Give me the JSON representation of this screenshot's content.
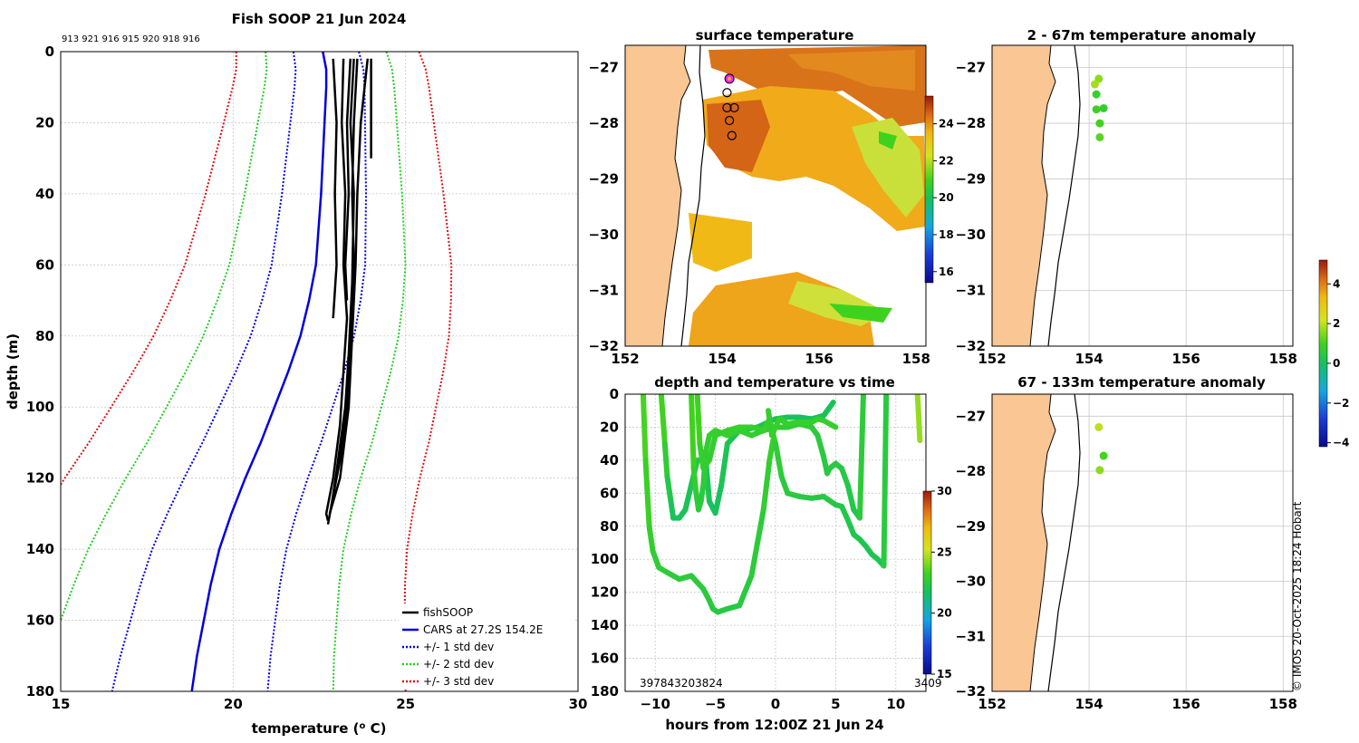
{
  "figure": {
    "title": "Fish SOOP 21 Jun 2024",
    "vessel_ids": "913 921 916 915 920 918 916",
    "copyright": "© IMOS 20-Oct-2025 18:24 Hobart"
  },
  "colors": {
    "fishsoop": "#000000",
    "cars": "#0000dd",
    "std1": "#0000dd",
    "std2": "#22cc22",
    "std3": "#dd1111",
    "land": "#f9c694",
    "grid": "#c8c8c8"
  },
  "chart_data": [
    {
      "type": "line",
      "panel": "profile",
      "title": "Fish SOOP 21 Jun 2024",
      "xlabel": "temperature (",
      "xlabel_sup": "o",
      "xlabel_unit": " C)",
      "ylabel": "depth (m)",
      "xlim": [
        15,
        30
      ],
      "ylim": [
        180,
        0
      ],
      "xticks": [
        15,
        20,
        25,
        30
      ],
      "yticks": [
        0,
        20,
        40,
        60,
        80,
        100,
        120,
        140,
        160,
        180
      ],
      "legend_position": "bottom-right",
      "legend": [
        "fishSOOP",
        "CARS at 27.2S 154.2E",
        "+/- 1 std dev",
        "+/- 2 std dev",
        "+/- 3 std dev"
      ],
      "cars": {
        "depth": [
          0,
          5,
          10,
          20,
          40,
          60,
          70,
          80,
          90,
          100,
          110,
          120,
          130,
          140,
          150,
          160,
          170,
          180
        ],
        "temp": [
          22.6,
          22.7,
          22.7,
          22.65,
          22.55,
          22.4,
          22.2,
          21.95,
          21.6,
          21.2,
          20.8,
          20.35,
          19.95,
          19.6,
          19.35,
          19.15,
          18.95,
          18.8
        ]
      },
      "std_offsets": [
        2.1,
        4.1,
        6.2
      ],
      "fishsoop_profiles": [
        {
          "depth": [
            2,
            20,
            40,
            60,
            75
          ],
          "temp": [
            22.9,
            23.0,
            22.95,
            23.0,
            22.9
          ]
        },
        {
          "depth": [
            2,
            20,
            40,
            60,
            75,
            90,
            105,
            120,
            130,
            132
          ],
          "temp": [
            23.2,
            23.15,
            23.25,
            23.2,
            23.3,
            23.2,
            23.1,
            22.9,
            22.7,
            22.75
          ]
        },
        {
          "depth": [
            2,
            20,
            40,
            60,
            70
          ],
          "temp": [
            23.4,
            23.3,
            23.35,
            23.25,
            23.3
          ]
        },
        {
          "depth": [
            2,
            20,
            40,
            60,
            80,
            100,
            115,
            125,
            133
          ],
          "temp": [
            23.6,
            23.5,
            23.45,
            23.5,
            23.4,
            23.3,
            23.1,
            22.9,
            22.75
          ]
        },
        {
          "depth": [
            2,
            20,
            40,
            60,
            80,
            100,
            120,
            130
          ],
          "temp": [
            23.9,
            23.7,
            23.6,
            23.55,
            23.45,
            23.35,
            23.1,
            22.8
          ]
        },
        {
          "depth": [
            2,
            30
          ],
          "temp": [
            24.0,
            24.0
          ]
        },
        {
          "depth": [
            2,
            20,
            40,
            65,
            85,
            100,
            118,
            128
          ],
          "temp": [
            23.5,
            23.4,
            23.5,
            23.45,
            23.35,
            23.25,
            23.0,
            22.85
          ]
        }
      ]
    },
    {
      "type": "heatmap",
      "panel": "sst_map",
      "title": "surface temperature",
      "xlim": [
        152,
        158.2
      ],
      "ylim": [
        -32,
        -26.6
      ],
      "xticks": [
        152,
        154,
        156,
        158
      ],
      "yticks": [
        -27,
        -28,
        -29,
        -30,
        -31,
        -32
      ],
      "colorbar": {
        "min": 15.4,
        "max": 25.5,
        "ticks": [
          16,
          18,
          20,
          22,
          24
        ]
      },
      "stations": [
        {
          "lon": 154.1,
          "lat": -27.45
        },
        {
          "lon": 154.1,
          "lat": -27.72
        },
        {
          "lon": 154.25,
          "lat": -27.72
        },
        {
          "lon": 154.15,
          "lat": -27.95
        },
        {
          "lon": 154.2,
          "lat": -28.22
        }
      ],
      "highlight_station": {
        "lon": 154.15,
        "lat": -27.2
      }
    },
    {
      "type": "line",
      "panel": "depth_time",
      "title": "depth and temperature vs time",
      "xlabel": "hours from 12:00Z 21 Jun 24",
      "xlim": [
        -12.5,
        12.5
      ],
      "ylim": [
        180,
        0
      ],
      "xticks": [
        -10,
        -5,
        0,
        5,
        10
      ],
      "yticks": [
        0,
        20,
        40,
        60,
        80,
        100,
        120,
        140,
        160,
        180
      ],
      "colorbar": {
        "min": 15,
        "max": 30,
        "ticks": [
          15,
          20,
          25,
          30
        ]
      },
      "start_labels": "397843203824",
      "end_label": "3409",
      "tracks": [
        {
          "hours": [
            -11,
            -10.8,
            -10.5,
            -10.2,
            -9.7,
            -9,
            -8,
            -7,
            -6,
            -5.5,
            -5.2,
            -4.8,
            -4,
            -3,
            -2,
            -1,
            -0.5,
            -0.2
          ],
          "depth": [
            0,
            40,
            80,
            95,
            105,
            108,
            112,
            110,
            118,
            125,
            130,
            132,
            130,
            128,
            110,
            70,
            40,
            28
          ],
          "temp": [
            23.5,
            23.2,
            23.0,
            22.8,
            22.7,
            22.7,
            22.6,
            22.6,
            22.5,
            22.5,
            22.4,
            22.3,
            22.4,
            22.4,
            22.5,
            22.7,
            22.9,
            23.0
          ]
        },
        {
          "hours": [
            -9.5,
            -9.2,
            -9,
            -8.7,
            -8.5,
            -8,
            -7.5,
            -7,
            -6.5,
            -5.8,
            -5.5,
            -5,
            -4.5,
            -4,
            -3,
            -1.5,
            0,
            1,
            2,
            3,
            4,
            4.8
          ],
          "depth": [
            0,
            30,
            50,
            65,
            75,
            75,
            70,
            55,
            40,
            40,
            65,
            72,
            55,
            30,
            22,
            20,
            15,
            14,
            14,
            15,
            13,
            5
          ],
          "temp": [
            23.5,
            23.0,
            22.5,
            22.0,
            21.8,
            21.8,
            21.9,
            22.0,
            22.2,
            22.2,
            21.8,
            21.7,
            21.9,
            22.1,
            22.0,
            21.9,
            21.8,
            21.8,
            21.8,
            21.7,
            21.8,
            22.0
          ]
        },
        {
          "hours": [
            -7,
            -6.8,
            -6.6,
            -6.4,
            -6.2,
            -6,
            -5.8,
            -5.5,
            -5,
            -4,
            -3,
            -2,
            -1,
            0,
            1,
            2,
            3,
            3.5,
            4,
            4.3,
            4.5,
            5,
            5.5,
            6,
            6.5,
            7,
            7.3
          ],
          "depth": [
            0,
            45,
            60,
            70,
            65,
            55,
            35,
            25,
            22,
            25,
            22,
            25,
            22,
            20,
            20,
            18,
            20,
            25,
            38,
            48,
            45,
            42,
            45,
            55,
            70,
            75,
            0
          ],
          "temp": [
            23.5,
            23.0,
            22.7,
            22.5,
            22.5,
            22.6,
            22.8,
            22.9,
            23.0,
            22.9,
            22.9,
            22.8,
            22.8,
            22.8,
            22.7,
            22.7,
            22.7,
            22.6,
            22.5,
            22.4,
            22.4,
            22.5,
            22.4,
            22.3,
            22.2,
            22.2,
            23.0
          ]
        },
        {
          "hours": [
            -6.5,
            -6.3,
            -6,
            -5.5,
            -5,
            -4,
            -3,
            -2,
            -1,
            -0.5,
            0,
            0.5,
            1,
            2,
            3,
            4,
            5,
            5.5,
            6,
            6.5,
            7,
            7.5,
            8,
            8.5,
            9,
            9.2
          ],
          "depth": [
            0,
            30,
            45,
            40,
            25,
            22,
            20,
            20,
            22,
            15,
            30,
            50,
            60,
            62,
            63,
            62,
            67,
            68,
            76,
            85,
            88,
            92,
            97,
            100,
            104,
            0
          ],
          "temp": [
            23.5,
            23.0,
            22.8,
            22.8,
            22.9,
            22.9,
            23.0,
            23.0,
            22.9,
            23.1,
            22.8,
            22.6,
            22.5,
            22.5,
            22.4,
            22.4,
            22.3,
            22.3,
            22.2,
            22.2,
            22.1,
            22.1,
            22.0,
            22.0,
            22.0,
            23.0
          ]
        },
        {
          "hours": [
            -0.6,
            -0.3,
            0,
            0.3,
            1,
            2,
            3,
            3.5,
            4,
            5
          ],
          "depth": [
            10,
            25,
            20,
            15,
            18,
            17,
            17,
            15,
            16,
            20
          ],
          "temp": [
            22.8,
            22.9,
            23.0,
            23.0,
            22.9,
            23.0,
            23.0,
            23.0,
            22.9,
            22.9
          ]
        },
        {
          "hours": [
            11.8,
            12.0
          ],
          "depth": [
            0,
            28
          ],
          "temp": [
            24.3,
            24.4
          ]
        }
      ]
    },
    {
      "type": "scatter",
      "panel": "anomaly_upper",
      "title": "2 - 67m temperature anomaly",
      "xlim": [
        152,
        158.2
      ],
      "ylim": [
        -32,
        -26.6
      ],
      "xticks": [
        152,
        154,
        156,
        158
      ],
      "yticks": [
        -27,
        -28,
        -29,
        -30,
        -31,
        -32
      ],
      "points": [
        {
          "lon": 154.2,
          "lat": -27.2,
          "anom": 1.6
        },
        {
          "lon": 154.12,
          "lat": -27.3,
          "anom": 1.8
        },
        {
          "lon": 154.15,
          "lat": -27.48,
          "anom": 0.8
        },
        {
          "lon": 154.15,
          "lat": -27.75,
          "anom": 0.9
        },
        {
          "lon": 154.3,
          "lat": -27.73,
          "anom": 0.7
        },
        {
          "lon": 154.22,
          "lat": -28.0,
          "anom": 1.0
        },
        {
          "lon": 154.22,
          "lat": -28.25,
          "anom": 1.2
        }
      ]
    },
    {
      "type": "scatter",
      "panel": "anomaly_lower",
      "title": "67 - 133m temperature anomaly",
      "xlim": [
        152,
        158.2
      ],
      "ylim": [
        -32,
        -26.6
      ],
      "xticks": [
        152,
        154,
        156,
        158
      ],
      "yticks": [
        -27,
        -28,
        -29,
        -30,
        -31,
        -32
      ],
      "colorbar": {
        "min": -4.2,
        "max": 5.2,
        "ticks": [
          -4,
          -2,
          0,
          2,
          4
        ]
      },
      "points": [
        {
          "lon": 154.2,
          "lat": -27.2,
          "anom": 2.0
        },
        {
          "lon": 154.3,
          "lat": -27.72,
          "anom": 1.0
        },
        {
          "lon": 154.22,
          "lat": -27.98,
          "anom": 1.6
        }
      ]
    }
  ]
}
